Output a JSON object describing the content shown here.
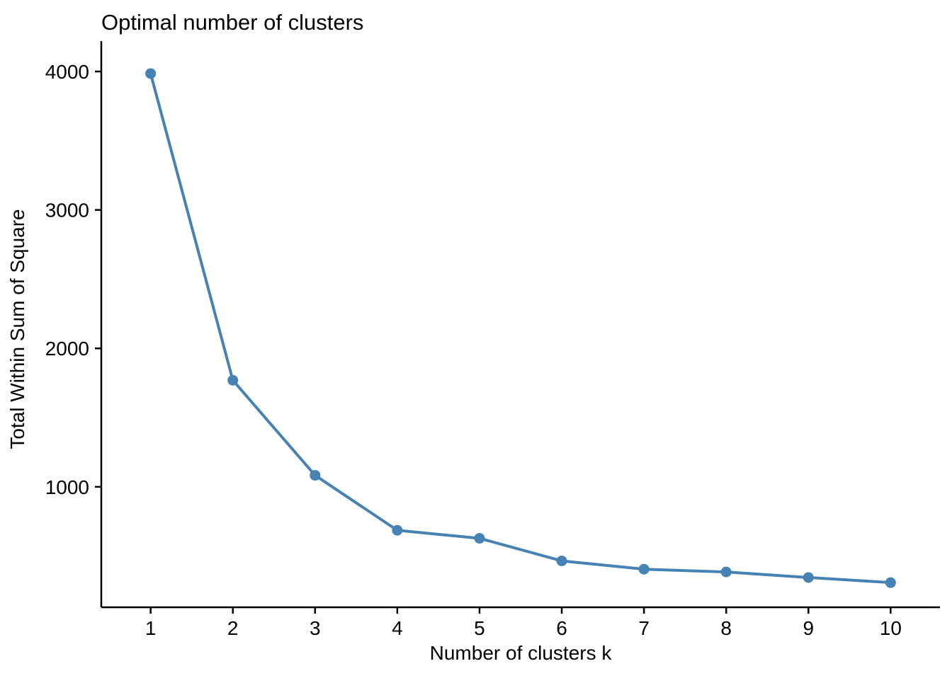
{
  "chart_data": {
    "type": "line",
    "title": "Optimal number of clusters",
    "xlabel": "Number of clusters k",
    "ylabel": "Total Within Sum of Square",
    "x": [
      1,
      2,
      3,
      4,
      5,
      6,
      7,
      8,
      9,
      10
    ],
    "series": [
      {
        "name": "Total Within Sum of Square",
        "values": [
          3985,
          1770,
          1083,
          686,
          628,
          465,
          405,
          385,
          345,
          308
        ]
      }
    ],
    "x_tick_labels": [
      "1",
      "2",
      "3",
      "4",
      "5",
      "6",
      "7",
      "8",
      "9",
      "10"
    ],
    "y_tick_values": [
      1000,
      2000,
      3000,
      4000
    ],
    "y_tick_labels": [
      "1000",
      "2000",
      "3000",
      "4000"
    ],
    "xlim": [
      0.4,
      10.6
    ],
    "ylim": [
      130,
      4220
    ],
    "grid": false,
    "legend": "none",
    "line_color": "#4682B4",
    "axis_color": "#000000",
    "text_color": "#000000"
  }
}
